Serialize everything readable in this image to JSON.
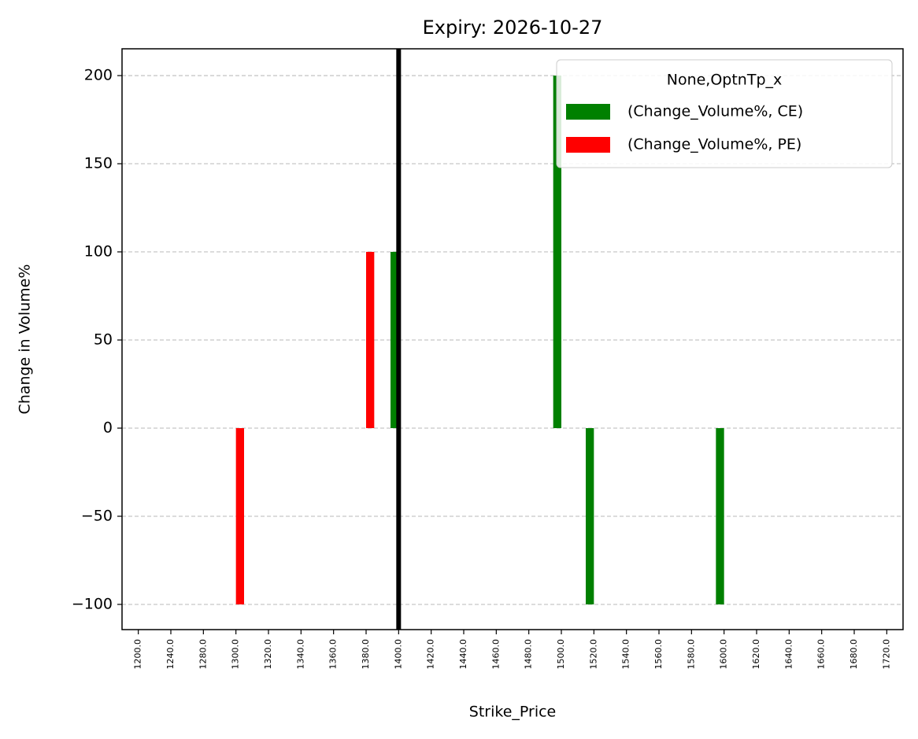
{
  "chart_data": {
    "type": "bar",
    "title": "Expiry: 2026-10-27",
    "x_label": "Strike_Price",
    "y_label": "Change in Volume%",
    "categories": [
      "1200.0",
      "1240.0",
      "1280.0",
      "1300.0",
      "1320.0",
      "1340.0",
      "1360.0",
      "1380.0",
      "1400.0",
      "1420.0",
      "1440.0",
      "1460.0",
      "1480.0",
      "1500.0",
      "1520.0",
      "1540.0",
      "1560.0",
      "1580.0",
      "1600.0",
      "1620.0",
      "1640.0",
      "1660.0",
      "1680.0",
      "1720.0"
    ],
    "series": [
      {
        "name": "(Change_Volume%, CE)",
        "color": "green",
        "values": [
          null,
          null,
          null,
          null,
          null,
          null,
          null,
          null,
          100,
          null,
          null,
          null,
          null,
          200,
          -100,
          null,
          null,
          null,
          -100,
          null,
          null,
          null,
          null,
          null
        ]
      },
      {
        "name": "(Change_Volume%, PE)",
        "color": "red",
        "values": [
          null,
          null,
          null,
          -100,
          null,
          null,
          null,
          100,
          null,
          null,
          null,
          null,
          null,
          null,
          null,
          null,
          null,
          null,
          null,
          null,
          null,
          null,
          null,
          null
        ]
      }
    ],
    "legend_title": "None,OptnTp_x",
    "legend_position": "upper right",
    "vline": 1400,
    "ylim": [
      -114.3,
      215.2
    ],
    "yticks": [
      {
        "value": -100,
        "label": "−100"
      },
      {
        "value": -50,
        "label": "−50"
      },
      0,
      50,
      100,
      150,
      200
    ],
    "grid": true
  }
}
